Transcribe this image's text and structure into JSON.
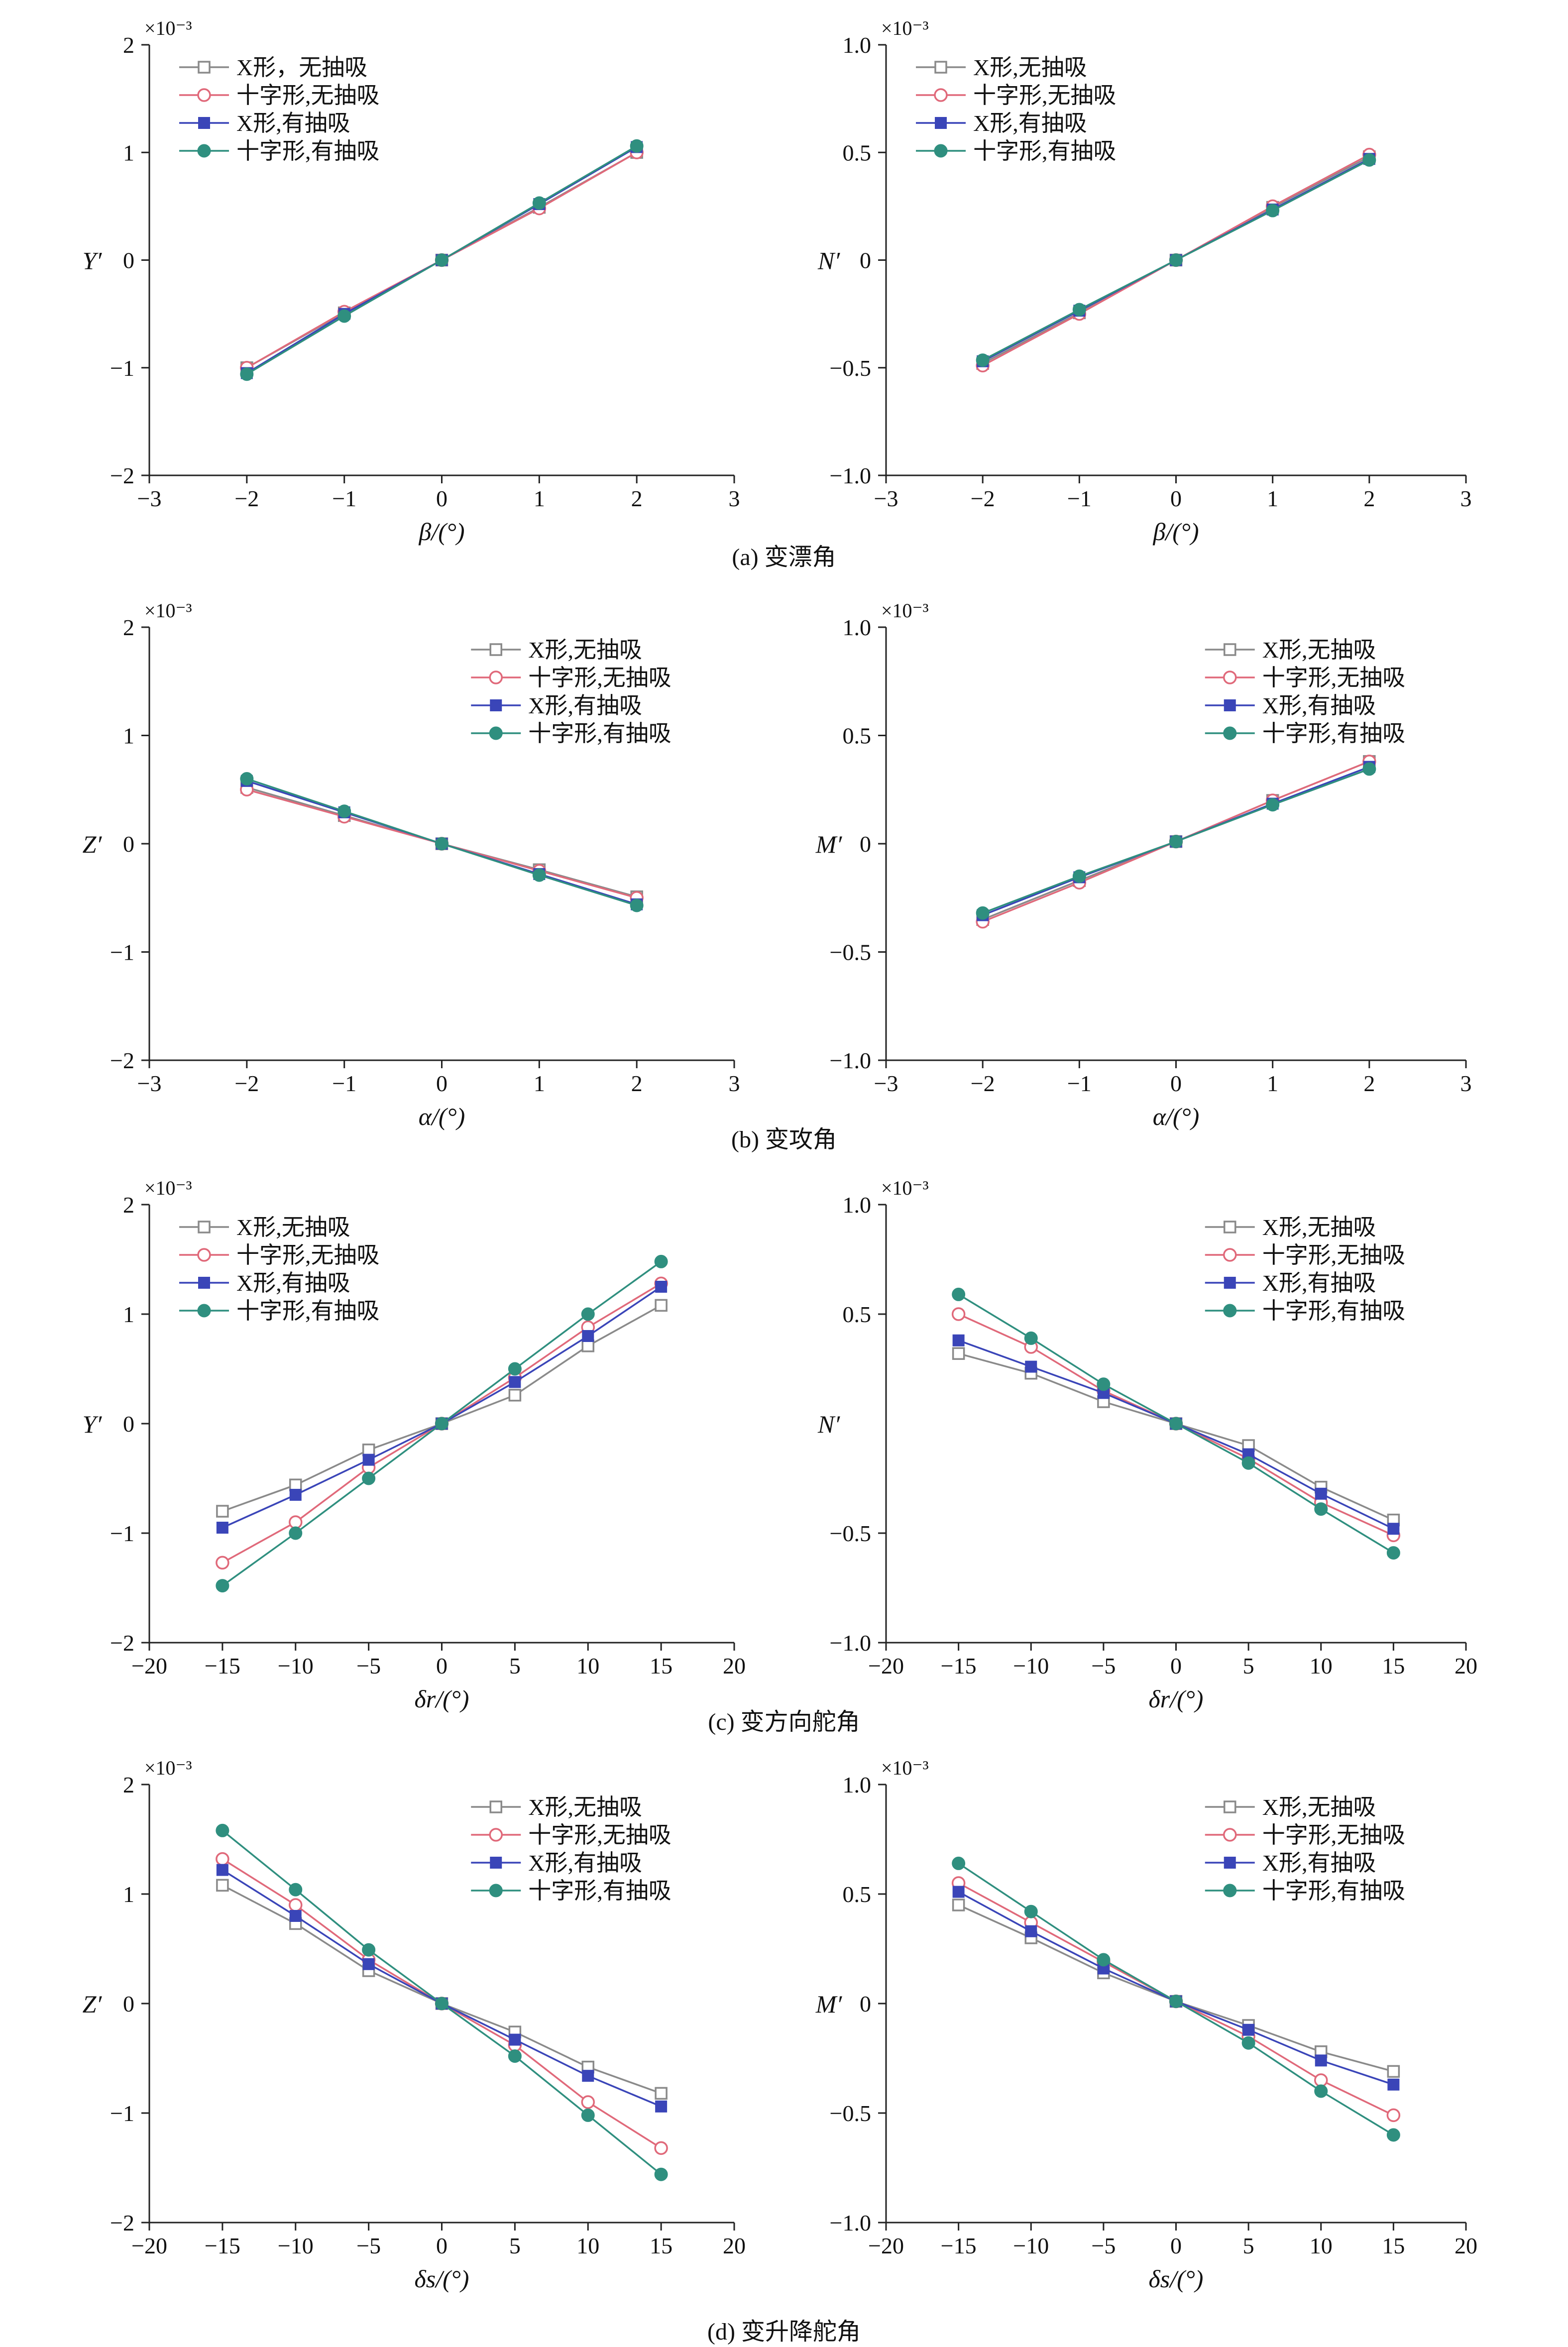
{
  "figure": {
    "captions": [
      "(a) 变漂角",
      "(b) 变攻角",
      "(c) 变方向舵角",
      "(d) 变升降舵角"
    ]
  },
  "series_styles": [
    {
      "name": "X形,无抽吸",
      "color": "#8a8a8a",
      "marker": "open-square"
    },
    {
      "name": "十字形,无抽吸",
      "color": "#e0697a",
      "marker": "open-circle"
    },
    {
      "name": "X形,有抽吸",
      "color": "#3a45b8",
      "marker": "filled-square"
    },
    {
      "name": "十字形,有抽吸",
      "color": "#2f8f7f",
      "marker": "filled-circle"
    }
  ],
  "chart_data": [
    {
      "type": "line",
      "row": 0,
      "col": 0,
      "multiplier": "×10⁻³",
      "xlabel": "β/(°)",
      "ylabel": "Y′",
      "xlim": [
        -3,
        3
      ],
      "xticks": [
        -3,
        -2,
        -1,
        0,
        1,
        2,
        3
      ],
      "ylim": [
        -2,
        2
      ],
      "yticks": [
        -2,
        -1,
        0,
        1,
        2
      ],
      "ytick_labels": [
        "−2",
        "−1",
        "0",
        "1",
        "2"
      ],
      "legend_position": "top-left",
      "x": [
        -2,
        -1,
        0,
        1,
        2
      ],
      "series": [
        {
          "name": "X形，无抽吸",
          "values": [
            -1.0,
            -0.49,
            0,
            0.49,
            1.0
          ]
        },
        {
          "name": "十字形,无抽吸",
          "values": [
            -1.0,
            -0.48,
            0,
            0.48,
            1.0
          ]
        },
        {
          "name": "X形,有抽吸",
          "values": [
            -1.05,
            -0.5,
            0,
            0.52,
            1.05
          ]
        },
        {
          "name": "十字形,有抽吸",
          "values": [
            -1.06,
            -0.52,
            0,
            0.53,
            1.06
          ]
        }
      ]
    },
    {
      "type": "line",
      "row": 0,
      "col": 1,
      "multiplier": "×10⁻³",
      "xlabel": "β/(°)",
      "ylabel": "N′",
      "xlim": [
        -3,
        3
      ],
      "xticks": [
        -3,
        -2,
        -1,
        0,
        1,
        2,
        3
      ],
      "ylim": [
        -1,
        1
      ],
      "yticks": [
        -1,
        -0.5,
        0,
        0.5,
        1
      ],
      "ytick_labels": [
        "−1.0",
        "−0.5",
        "0",
        "0.5",
        "1.0"
      ],
      "legend_position": "top-left",
      "x": [
        -2,
        -1,
        0,
        1,
        2
      ],
      "series": [
        {
          "name": "X形,无抽吸",
          "values": [
            -0.48,
            -0.245,
            0,
            0.245,
            0.48
          ]
        },
        {
          "name": "十字形,无抽吸",
          "values": [
            -0.49,
            -0.25,
            0,
            0.25,
            0.49
          ]
        },
        {
          "name": "X形,有抽吸",
          "values": [
            -0.47,
            -0.235,
            0,
            0.235,
            0.47
          ]
        },
        {
          "name": "十字形,有抽吸",
          "values": [
            -0.465,
            -0.23,
            0,
            0.23,
            0.465
          ]
        }
      ]
    },
    {
      "type": "line",
      "row": 1,
      "col": 0,
      "multiplier": "×10⁻³",
      "xlabel": "α/(°)",
      "ylabel": "Z′",
      "xlim": [
        -3,
        3
      ],
      "xticks": [
        -3,
        -2,
        -1,
        0,
        1,
        2,
        3
      ],
      "ylim": [
        -2,
        2
      ],
      "yticks": [
        -2,
        -1,
        0,
        1,
        2
      ],
      "ytick_labels": [
        "−2",
        "−1",
        "0",
        "1",
        "2"
      ],
      "legend_position": "top-right",
      "x": [
        -2,
        -1,
        0,
        1,
        2
      ],
      "series": [
        {
          "name": "X形,无抽吸",
          "values": [
            0.52,
            0.26,
            0,
            -0.24,
            -0.49
          ]
        },
        {
          "name": "十字形,无抽吸",
          "values": [
            0.5,
            0.25,
            0,
            -0.25,
            -0.5
          ]
        },
        {
          "name": "X形,有抽吸",
          "values": [
            0.58,
            0.29,
            0,
            -0.28,
            -0.56
          ]
        },
        {
          "name": "十字形,有抽吸",
          "values": [
            0.6,
            0.3,
            0,
            -0.29,
            -0.57
          ]
        }
      ]
    },
    {
      "type": "line",
      "row": 1,
      "col": 1,
      "multiplier": "×10⁻³",
      "xlabel": "α/(°)",
      "ylabel": "M′",
      "xlim": [
        -3,
        3
      ],
      "xticks": [
        -3,
        -2,
        -1,
        0,
        1,
        2,
        3
      ],
      "ylim": [
        -1,
        1
      ],
      "yticks": [
        -1,
        -0.5,
        0,
        0.5,
        1
      ],
      "ytick_labels": [
        "−1.0",
        "−0.5",
        "0",
        "0.5",
        "1.0"
      ],
      "legend_position": "top-right",
      "x": [
        -2,
        -1,
        0,
        1,
        2
      ],
      "series": [
        {
          "name": "X形,无抽吸",
          "values": [
            -0.35,
            -0.17,
            0.01,
            0.2,
            0.38
          ]
        },
        {
          "name": "十字形,无抽吸",
          "values": [
            -0.36,
            -0.18,
            0.01,
            0.2,
            0.38
          ]
        },
        {
          "name": "X形,有抽吸",
          "values": [
            -0.33,
            -0.155,
            0.01,
            0.185,
            0.355
          ]
        },
        {
          "name": "十字形,有抽吸",
          "values": [
            -0.32,
            -0.15,
            0.01,
            0.18,
            0.345
          ]
        }
      ]
    },
    {
      "type": "line",
      "row": 2,
      "col": 0,
      "multiplier": "×10⁻³",
      "xlabel": "δr/(°)",
      "ylabel": "Y′",
      "xlim": [
        -20,
        20
      ],
      "xticks": [
        -20,
        -15,
        -10,
        -5,
        0,
        5,
        10,
        15,
        20
      ],
      "ylim": [
        -2,
        2
      ],
      "yticks": [
        -2,
        -1,
        0,
        1,
        2
      ],
      "ytick_labels": [
        "−2",
        "−1",
        "0",
        "1",
        "2"
      ],
      "legend_position": "top-left",
      "x": [
        -15,
        -10,
        -5,
        0,
        5,
        10,
        15
      ],
      "series": [
        {
          "name": "X形,无抽吸",
          "values": [
            -0.8,
            -0.56,
            -0.24,
            0,
            0.26,
            0.71,
            1.08
          ]
        },
        {
          "name": "十字形,无抽吸",
          "values": [
            -1.27,
            -0.9,
            -0.4,
            0,
            0.42,
            0.88,
            1.28
          ]
        },
        {
          "name": "X形,有抽吸",
          "values": [
            -0.95,
            -0.65,
            -0.33,
            0,
            0.38,
            0.8,
            1.25
          ]
        },
        {
          "name": "十字形,有抽吸",
          "values": [
            -1.48,
            -1.0,
            -0.5,
            0,
            0.5,
            1.0,
            1.48
          ]
        }
      ]
    },
    {
      "type": "line",
      "row": 2,
      "col": 1,
      "multiplier": "×10⁻³",
      "xlabel": "δr/(°)",
      "ylabel": "N′",
      "xlim": [
        -20,
        20
      ],
      "xticks": [
        -20,
        -15,
        -10,
        -5,
        0,
        5,
        10,
        15,
        20
      ],
      "ylim": [
        -1,
        1
      ],
      "yticks": [
        -1,
        -0.5,
        0.5,
        1
      ],
      "ytick_labels": [
        "−1.0",
        "−0.5",
        "0.5",
        "1.0"
      ],
      "legend_position": "top-right",
      "x": [
        -15,
        -10,
        -5,
        0,
        5,
        10,
        15
      ],
      "series": [
        {
          "name": "X形,无抽吸",
          "values": [
            0.32,
            0.23,
            0.1,
            0,
            -0.1,
            -0.29,
            -0.44
          ]
        },
        {
          "name": "十字形,无抽吸",
          "values": [
            0.5,
            0.35,
            0.15,
            0,
            -0.16,
            -0.36,
            -0.51
          ]
        },
        {
          "name": "X形,有抽吸",
          "values": [
            0.38,
            0.26,
            0.14,
            0,
            -0.14,
            -0.32,
            -0.48
          ]
        },
        {
          "name": "十字形,有抽吸",
          "values": [
            0.59,
            0.39,
            0.18,
            0,
            -0.18,
            -0.39,
            -0.59
          ]
        }
      ]
    },
    {
      "type": "line",
      "row": 3,
      "col": 0,
      "multiplier": "×10⁻³",
      "xlabel": "δs/(°)",
      "ylabel": "Z′",
      "xlim": [
        -20,
        20
      ],
      "xticks": [
        -20,
        -15,
        -10,
        -5,
        0,
        5,
        10,
        15,
        20
      ],
      "ylim": [
        -2,
        2
      ],
      "yticks": [
        -2,
        -1,
        0,
        1,
        2
      ],
      "ytick_labels": [
        "−2",
        "−1",
        "0",
        "1",
        "2"
      ],
      "legend_position": "top-right",
      "x": [
        -15,
        -10,
        -5,
        0,
        5,
        10,
        15
      ],
      "series": [
        {
          "name": "X形,无抽吸",
          "values": [
            1.08,
            0.73,
            0.3,
            0,
            -0.26,
            -0.58,
            -0.82
          ]
        },
        {
          "name": "十字形,无抽吸",
          "values": [
            1.32,
            0.9,
            0.4,
            0,
            -0.38,
            -0.9,
            -1.32
          ]
        },
        {
          "name": "X形,有抽吸",
          "values": [
            1.22,
            0.8,
            0.36,
            0,
            -0.33,
            -0.66,
            -0.94
          ]
        },
        {
          "name": "十字形,有抽吸",
          "values": [
            1.58,
            1.04,
            0.49,
            0,
            -0.48,
            -1.02,
            -1.56
          ]
        }
      ]
    },
    {
      "type": "line",
      "row": 3,
      "col": 1,
      "multiplier": "×10⁻³",
      "xlabel": "δs/(°)",
      "ylabel": "M′",
      "xlim": [
        -20,
        20
      ],
      "xticks": [
        -20,
        -15,
        -10,
        -5,
        0,
        5,
        10,
        15,
        20
      ],
      "ylim": [
        -1,
        1
      ],
      "yticks": [
        -1,
        -0.5,
        0,
        0.5,
        1
      ],
      "ytick_labels": [
        "−1.0",
        "−0.5",
        "0",
        "0.5",
        "1.0"
      ],
      "legend_position": "top-right",
      "x": [
        -15,
        -10,
        -5,
        0,
        5,
        10,
        15
      ],
      "series": [
        {
          "name": "X形,无抽吸",
          "values": [
            0.45,
            0.3,
            0.14,
            0.01,
            -0.1,
            -0.22,
            -0.31
          ]
        },
        {
          "name": "十字形,无抽吸",
          "values": [
            0.55,
            0.37,
            0.19,
            0.01,
            -0.15,
            -0.35,
            -0.51
          ]
        },
        {
          "name": "X形,有抽吸",
          "values": [
            0.51,
            0.33,
            0.16,
            0.01,
            -0.12,
            -0.26,
            -0.37
          ]
        },
        {
          "name": "十字形,有抽吸",
          "values": [
            0.64,
            0.42,
            0.2,
            0.01,
            -0.18,
            -0.4,
            -0.6
          ]
        }
      ]
    }
  ]
}
